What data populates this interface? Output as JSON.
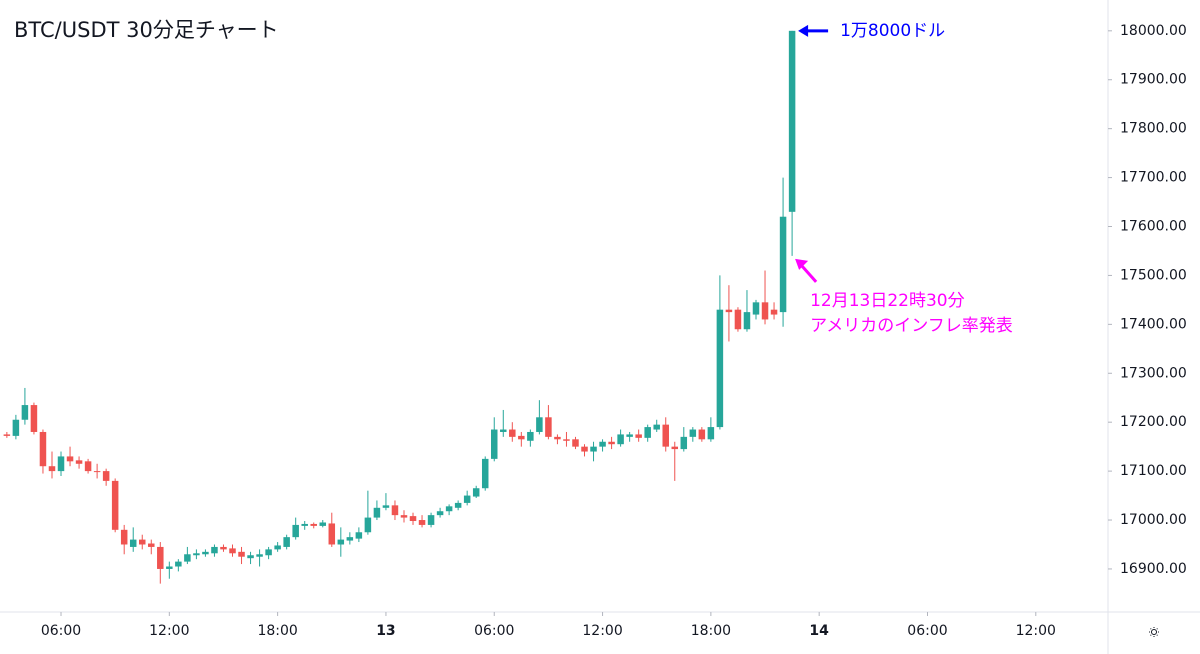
{
  "chart_data": {
    "type": "candlestick",
    "title": "BTC/USDT 30分足チャート",
    "up_color": "#26a69a",
    "down_color": "#ef5350",
    "xlim": [
      2.62,
      64.0
    ],
    "xticks": [
      {
        "value": 6,
        "label": "06:00"
      },
      {
        "value": 12,
        "label": "12:00"
      },
      {
        "value": 18,
        "label": "18:00"
      },
      {
        "value": 24,
        "label": "13"
      },
      {
        "value": 30,
        "label": "06:00"
      },
      {
        "value": 36,
        "label": "12:00"
      },
      {
        "value": 42,
        "label": "18:00"
      },
      {
        "value": 48,
        "label": "14"
      },
      {
        "value": 54,
        "label": "06:00"
      },
      {
        "value": 60,
        "label": "12:00"
      }
    ],
    "ylim": [
      16812,
      18063
    ],
    "yticks": [
      {
        "value": 16900,
        "label": "16900.00"
      },
      {
        "value": 17000,
        "label": "17000.00"
      },
      {
        "value": 17100,
        "label": "17100.00"
      },
      {
        "value": 17200,
        "label": "17200.00"
      },
      {
        "value": 17300,
        "label": "17300.00"
      },
      {
        "value": 17400,
        "label": "17400.00"
      },
      {
        "value": 17500,
        "label": "17500.00"
      },
      {
        "value": 17600,
        "label": "17600.00"
      },
      {
        "value": 17700,
        "label": "17700.00"
      },
      {
        "value": 17800,
        "label": "17800.00"
      },
      {
        "value": 17900,
        "label": "17900.00"
      },
      {
        "value": 18000,
        "label": "18000.00"
      }
    ],
    "x": [
      3,
      3.5,
      4,
      4.5,
      5,
      5.5,
      6,
      6.5,
      7,
      7.5,
      8,
      8.5,
      9,
      9.5,
      10,
      10.5,
      11,
      11.5,
      12,
      12.5,
      13,
      13.5,
      14,
      14.5,
      15,
      15.5,
      16,
      16.5,
      17,
      17.5,
      18,
      18.5,
      19,
      19.5,
      20,
      20.5,
      21,
      21.5,
      22,
      22.5,
      23,
      23.5,
      24,
      24.5,
      25,
      25.5,
      26,
      26.5,
      27,
      27.5,
      28,
      28.5,
      29,
      29.5,
      30,
      30.5,
      31,
      31.5,
      32,
      32.5,
      33,
      33.5,
      34,
      34.5,
      35,
      35.5,
      36,
      36.5,
      37,
      37.5,
      38,
      38.5,
      39,
      39.5,
      40,
      40.5,
      41,
      41.5,
      42,
      42.5,
      43,
      43.5,
      44,
      44.5,
      45,
      45.5,
      46,
      46.5
    ],
    "open": [
      17175,
      17172,
      17205,
      17235,
      17180,
      17110,
      17100,
      17130,
      17122,
      17120,
      17100,
      17100,
      17080,
      16980,
      16945,
      16960,
      16952,
      16945,
      16900,
      16905,
      16915,
      16928,
      16930,
      16932,
      16945,
      16942,
      16935,
      16922,
      16925,
      16928,
      16940,
      16945,
      16965,
      16988,
      16992,
      16988,
      16993,
      16950,
      16958,
      16962,
      16975,
      17005,
      17025,
      17030,
      17010,
      17008,
      17000,
      16990,
      17010,
      17018,
      17025,
      17035,
      17048,
      17065,
      17125,
      17180,
      17185,
      17172,
      17162,
      17180,
      17210,
      17170,
      17165,
      17165,
      17150,
      17140,
      17150,
      17160,
      17155,
      17170,
      17175,
      17168,
      17185,
      17195,
      17150,
      17145,
      17170,
      17185,
      17165,
      17190,
      17430,
      17430,
      17390,
      17420,
      17445,
      17430,
      17425,
      17630
    ],
    "high": [
      17180,
      17215,
      17270,
      17240,
      17185,
      17140,
      17140,
      17150,
      17130,
      17125,
      17115,
      17105,
      17085,
      16990,
      16985,
      16970,
      16960,
      16955,
      16915,
      16920,
      16945,
      16940,
      16940,
      16950,
      16950,
      16950,
      16945,
      16935,
      16940,
      16945,
      16955,
      16970,
      17005,
      16998,
      16995,
      17000,
      17015,
      16985,
      16975,
      16985,
      17060,
      17040,
      17055,
      17040,
      17020,
      17015,
      17010,
      17015,
      17025,
      17032,
      17040,
      17060,
      17070,
      17130,
      17210,
      17225,
      17200,
      17180,
      17185,
      17245,
      17235,
      17175,
      17180,
      17170,
      17155,
      17160,
      17165,
      17170,
      17185,
      17180,
      17185,
      17195,
      17205,
      17210,
      17160,
      17190,
      17190,
      17190,
      17210,
      17500,
      17480,
      17435,
      17470,
      17450,
      17510,
      17445,
      17700,
      18000
    ],
    "low": [
      17168,
      17165,
      17195,
      17175,
      17095,
      17085,
      17090,
      17110,
      17105,
      17095,
      17085,
      17070,
      16975,
      16930,
      16935,
      16940,
      16930,
      16870,
      16880,
      16895,
      16910,
      16920,
      16925,
      16925,
      16935,
      16925,
      16910,
      16910,
      16905,
      16920,
      16935,
      16940,
      16960,
      16980,
      16983,
      16985,
      16945,
      16925,
      16950,
      16955,
      16970,
      17000,
      17020,
      17000,
      16995,
      16990,
      16985,
      16985,
      17005,
      17010,
      17020,
      17030,
      17045,
      17060,
      17120,
      17170,
      17160,
      17150,
      17150,
      17175,
      17165,
      17155,
      17150,
      17145,
      17130,
      17120,
      17140,
      17145,
      17150,
      17160,
      17160,
      17160,
      17180,
      17140,
      17080,
      17140,
      17160,
      17160,
      17160,
      17185,
      17365,
      17385,
      17385,
      17410,
      17400,
      17410,
      17395,
      17540
    ],
    "close": [
      17172,
      17205,
      17235,
      17180,
      17110,
      17100,
      17130,
      17120,
      17115,
      17100,
      17098,
      17080,
      16980,
      16950,
      16960,
      16950,
      16945,
      16900,
      16905,
      16915,
      16930,
      16932,
      16935,
      16945,
      16940,
      16932,
      16925,
      16928,
      16930,
      16940,
      16948,
      16965,
      16990,
      16992,
      16988,
      16995,
      16950,
      16960,
      16965,
      16975,
      17005,
      17025,
      17030,
      17010,
      17005,
      16998,
      16990,
      17010,
      17018,
      17028,
      17035,
      17050,
      17065,
      17125,
      17185,
      17185,
      17170,
      17165,
      17180,
      17210,
      17170,
      17165,
      17162,
      17150,
      17140,
      17150,
      17160,
      17155,
      17175,
      17175,
      17168,
      17190,
      17195,
      17150,
      17145,
      17170,
      17185,
      17165,
      17190,
      17430,
      17425,
      17390,
      17425,
      17445,
      17410,
      17420,
      17620,
      18000
    ],
    "annotations": [
      {
        "text": "1万8000ドル",
        "color": "#0000ff"
      },
      {
        "text": [
          "12月13日22時30分",
          "アメリカのインフレ率発表"
        ],
        "color": "#ff00ff"
      }
    ]
  }
}
